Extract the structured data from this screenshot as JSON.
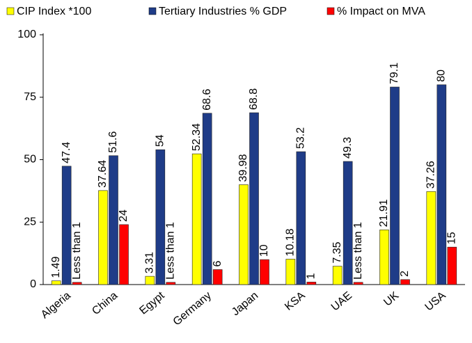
{
  "chart_data": {
    "type": "bar",
    "categories": [
      "Algeria",
      "China",
      "Egypt",
      "Germany",
      "Japan",
      "KSA",
      "UAE",
      "UK",
      "USA"
    ],
    "series": [
      {
        "name": "CIP Index *100",
        "color": "#ffff00",
        "values": [
          1.49,
          37.64,
          3.31,
          52.34,
          39.98,
          10.18,
          7.35,
          21.91,
          37.26
        ]
      },
      {
        "name": "Tertiary Industries % GDP",
        "color": "#1f3c88",
        "values": [
          47.4,
          51.6,
          54,
          68.6,
          68.8,
          53.2,
          49.3,
          79.1,
          80
        ]
      },
      {
        "name": "% Impact on MVA",
        "color": "#ff0000",
        "values": [
          0.9,
          24,
          0.9,
          6,
          10,
          1,
          0.9,
          2,
          15
        ],
        "value_labels": [
          "Less than 1",
          "24",
          "Less than 1",
          "6",
          "10",
          "1",
          "Less than 1",
          "2",
          "15"
        ]
      }
    ],
    "ylim": [
      0,
      100
    ],
    "yticks": [
      0,
      25,
      50,
      75,
      100
    ],
    "legend": "top"
  }
}
